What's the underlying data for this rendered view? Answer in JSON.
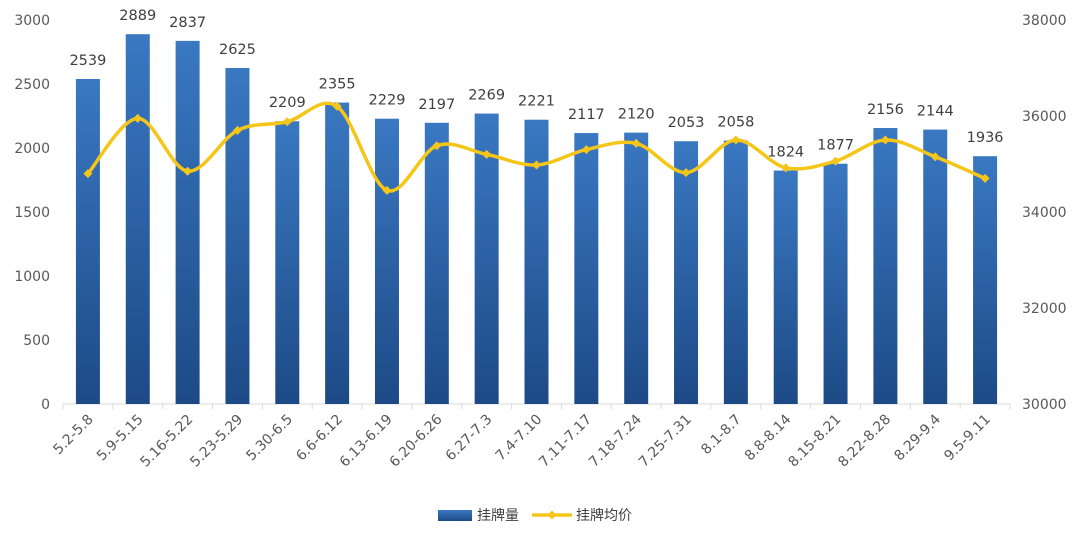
{
  "chart_data": {
    "type": "bar",
    "categories": [
      "5.2-5.8",
      "5.9-5.15",
      "5.16-5.22",
      "5.23-5.29",
      "5.30-6.5",
      "6.6-6.12",
      "6.13-6.19",
      "6.20-6.26",
      "6.27-7.3",
      "7.4-7.10",
      "7.11-7.17",
      "7.18-7.24",
      "7.25-7.31",
      "8.1-8.7",
      "8.8-8.14",
      "8.15-8.21",
      "8.22-8.28",
      "8.29-9.4",
      "9.5-9.11"
    ],
    "series": [
      {
        "name": "挂牌量",
        "type": "bar",
        "axis": "left",
        "values": [
          2539,
          2889,
          2837,
          2625,
          2209,
          2355,
          2229,
          2197,
          2269,
          2221,
          2117,
          2120,
          2053,
          2058,
          1824,
          1877,
          2156,
          2144,
          1936
        ]
      },
      {
        "name": "挂牌均价",
        "type": "line",
        "axis": "right",
        "values": [
          34800,
          35950,
          34850,
          35700,
          35880,
          36200,
          34450,
          35380,
          35200,
          34980,
          35300,
          35430,
          34820,
          35500,
          34920,
          35060,
          35500,
          35150,
          34700
        ]
      }
    ],
    "ylim_left": [
      0,
      3000
    ],
    "yticks_left": [
      0,
      500,
      1000,
      1500,
      2000,
      2500,
      3000
    ],
    "ylim_right": [
      30000,
      38000
    ],
    "yticks_right": [
      30000,
      32000,
      34000,
      36000,
      38000
    ],
    "colors": {
      "bar_top": "#3a78c2",
      "bar_bottom": "#1d4a86",
      "line": "#f5c518",
      "axis": "#d9d9d9"
    },
    "legend_position": "bottom-center",
    "title": "",
    "xlabel": "",
    "ylabel": ""
  }
}
